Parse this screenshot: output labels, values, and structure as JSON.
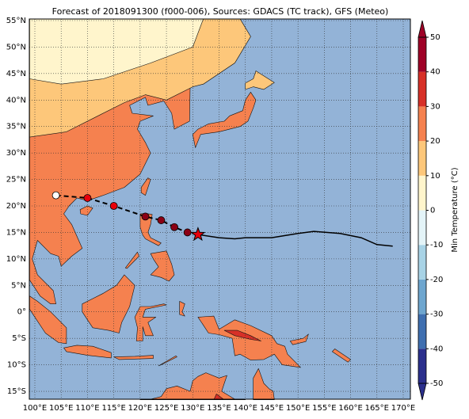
{
  "title": "Forecast of 2018091300 (f000-006), Sources: GDACS (TC track), GFS (Meteo)",
  "x_axis": {
    "ticks": [
      {
        "value": 100,
        "label": "100°E"
      },
      {
        "value": 105,
        "label": "105°E"
      },
      {
        "value": 110,
        "label": "110°E"
      },
      {
        "value": 115,
        "label": "115°E"
      },
      {
        "value": 120,
        "label": "120°E"
      },
      {
        "value": 125,
        "label": "125°E"
      },
      {
        "value": 130,
        "label": "130°E"
      },
      {
        "value": 135,
        "label": "135°E"
      },
      {
        "value": 140,
        "label": "140°E"
      },
      {
        "value": 145,
        "label": "145°E"
      },
      {
        "value": 150,
        "label": "150°E"
      },
      {
        "value": 155,
        "label": "155°E"
      },
      {
        "value": 160,
        "label": "160°E"
      },
      {
        "value": 165,
        "label": "165°E"
      },
      {
        "value": 170,
        "label": "170°E"
      }
    ]
  },
  "y_axis": {
    "ticks": [
      {
        "value": 55,
        "label": "55°N"
      },
      {
        "value": 50,
        "label": "50°N"
      },
      {
        "value": 45,
        "label": "45°N"
      },
      {
        "value": 40,
        "label": "40°N"
      },
      {
        "value": 35,
        "label": "35°N"
      },
      {
        "value": 30,
        "label": "30°N"
      },
      {
        "value": 25,
        "label": "25°N"
      },
      {
        "value": 20,
        "label": "20°N"
      },
      {
        "value": 15,
        "label": "15°N"
      },
      {
        "value": 10,
        "label": "10°N"
      },
      {
        "value": 5,
        "label": "5°N"
      },
      {
        "value": 0,
        "label": "0°"
      },
      {
        "value": -5,
        "label": "5°S"
      },
      {
        "value": -10,
        "label": "10°S"
      },
      {
        "value": -15,
        "label": "15°S"
      }
    ]
  },
  "colorbar": {
    "label": "Min Temperature (°C)",
    "ticks": [
      50,
      40,
      30,
      20,
      10,
      0,
      -10,
      -20,
      -30,
      -40,
      -50
    ],
    "colors": [
      "#2b2f8c",
      "#3f6fb0",
      "#6ea6cf",
      "#a8d3e6",
      "#e4f4f8",
      "#fff5cc",
      "#fdc77a",
      "#f5814f",
      "#d73027",
      "#9e0026"
    ]
  }
}
